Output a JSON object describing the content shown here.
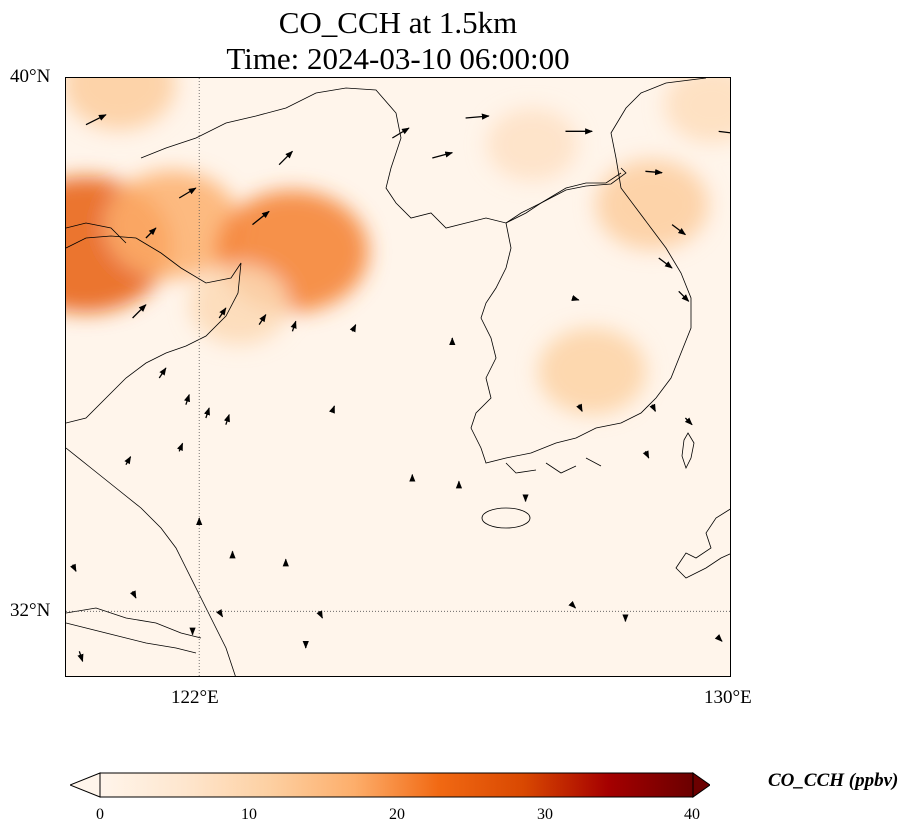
{
  "title": {
    "line1": "CO_CCH at 1.5km",
    "line2": "Time: 2024-03-10 06:00:00"
  },
  "map": {
    "extent": {
      "lon_min": 120.0,
      "lon_max": 130.0,
      "lat_min": 31.0,
      "lat_max": 40.0
    },
    "lat_ticks": [
      {
        "value": 40,
        "label": "40°N"
      },
      {
        "value": 32,
        "label": "32°N"
      }
    ],
    "lon_ticks": [
      {
        "value": 122,
        "label": "122°E"
      },
      {
        "value": 130,
        "label": "130°E"
      }
    ],
    "gridlines": {
      "lon": 122,
      "lat": 32,
      "style": "dotted"
    },
    "concentration_hotspots": [
      {
        "lon": 120.3,
        "lat": 37.5,
        "value": 25
      },
      {
        "lon": 121.6,
        "lat": 37.8,
        "value": 17
      },
      {
        "lon": 123.4,
        "lat": 37.4,
        "value": 21
      },
      {
        "lon": 120.8,
        "lat": 39.9,
        "value": 12
      },
      {
        "lon": 122.6,
        "lat": 36.6,
        "value": 9
      },
      {
        "lon": 128.8,
        "lat": 38.1,
        "value": 12
      },
      {
        "lon": 127.9,
        "lat": 35.6,
        "value": 11
      },
      {
        "lon": 129.7,
        "lat": 39.6,
        "value": 8
      },
      {
        "lon": 127.0,
        "lat": 39.0,
        "value": 7
      }
    ],
    "wind_vectors": [
      [
        120.3,
        39.3,
        0.3,
        0.15
      ],
      [
        121.7,
        38.2,
        0.25,
        0.15
      ],
      [
        121.2,
        37.6,
        0.15,
        0.15
      ],
      [
        122.8,
        37.8,
        0.25,
        0.2
      ],
      [
        123.2,
        38.7,
        0.2,
        0.2
      ],
      [
        124.9,
        39.1,
        0.25,
        0.15
      ],
      [
        125.5,
        38.8,
        0.3,
        0.08
      ],
      [
        126.0,
        39.4,
        0.35,
        0.03
      ],
      [
        127.5,
        39.2,
        0.4,
        0.0
      ],
      [
        129.8,
        39.2,
        0.4,
        -0.05
      ],
      [
        128.7,
        38.6,
        0.25,
        -0.02
      ],
      [
        129.1,
        37.8,
        0.2,
        -0.15
      ],
      [
        128.9,
        37.3,
        0.2,
        -0.15
      ],
      [
        129.2,
        36.8,
        0.15,
        -0.15
      ],
      [
        127.6,
        36.7,
        0.1,
        -0.03
      ],
      [
        121.0,
        36.4,
        0.2,
        0.2
      ],
      [
        122.3,
        36.4,
        0.1,
        0.15
      ],
      [
        122.9,
        36.3,
        0.1,
        0.15
      ],
      [
        123.4,
        36.2,
        0.05,
        0.15
      ],
      [
        124.3,
        36.2,
        0.05,
        0.1
      ],
      [
        121.4,
        35.5,
        0.1,
        0.15
      ],
      [
        121.8,
        35.1,
        0.05,
        0.15
      ],
      [
        122.4,
        34.8,
        0.05,
        0.15
      ],
      [
        122.1,
        34.9,
        0.05,
        0.15
      ],
      [
        121.7,
        34.4,
        0.05,
        0.12
      ],
      [
        120.9,
        34.2,
        0.07,
        0.12
      ],
      [
        124.0,
        35.0,
        0.03,
        0.08
      ],
      [
        125.8,
        36.0,
        0.0,
        0.1
      ],
      [
        127.7,
        35.1,
        0.05,
        -0.1
      ],
      [
        128.8,
        35.1,
        0.05,
        -0.1
      ],
      [
        129.3,
        34.9,
        0.1,
        -0.1
      ],
      [
        128.7,
        34.4,
        0.05,
        -0.1
      ],
      [
        125.2,
        34.0,
        0.0,
        0.05
      ],
      [
        125.9,
        33.9,
        0.0,
        0.05
      ],
      [
        126.9,
        33.7,
        0.0,
        -0.05
      ],
      [
        122.0,
        33.3,
        0.0,
        0.1
      ],
      [
        122.5,
        32.8,
        0.0,
        0.1
      ],
      [
        123.3,
        32.7,
        0.0,
        0.08
      ],
      [
        121.0,
        32.3,
        0.05,
        -0.1
      ],
      [
        122.3,
        32.0,
        0.05,
        -0.08
      ],
      [
        123.8,
        32.0,
        0.05,
        -0.1
      ],
      [
        120.1,
        32.7,
        0.05,
        -0.1
      ],
      [
        120.2,
        31.4,
        0.05,
        -0.15
      ],
      [
        121.9,
        31.7,
        0.0,
        -0.05
      ],
      [
        123.6,
        31.5,
        0.0,
        -0.05
      ],
      [
        127.6,
        32.1,
        0.05,
        -0.05
      ],
      [
        128.4,
        31.9,
        0.0,
        -0.05
      ],
      [
        129.8,
        31.6,
        0.05,
        -0.05
      ]
    ]
  },
  "colorbar": {
    "label": "CO_CCH (ppbv)",
    "min": 0,
    "max": 40,
    "extend": "both",
    "colormap": [
      "#fff5eb",
      "#fee6ce",
      "#fdd0a2",
      "#fdae6b",
      "#f16913",
      "#d94801",
      "#a50000",
      "#6b0000"
    ],
    "ticks": [
      {
        "value": 0,
        "label": "0"
      },
      {
        "value": 10,
        "label": "10"
      },
      {
        "value": 20,
        "label": "20"
      },
      {
        "value": 30,
        "label": "30"
      },
      {
        "value": 40,
        "label": "40"
      }
    ]
  }
}
